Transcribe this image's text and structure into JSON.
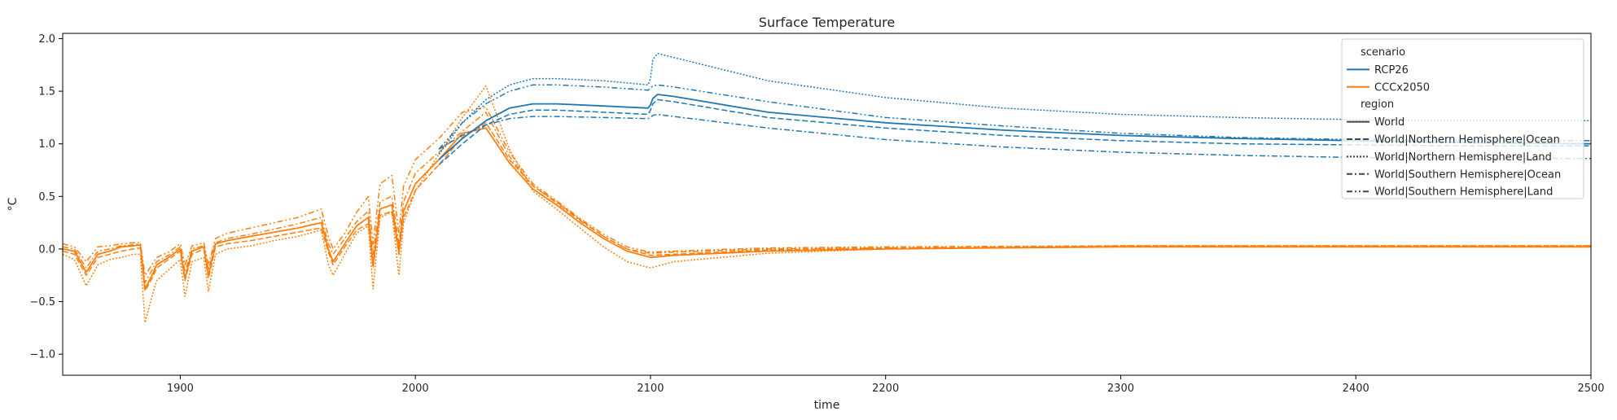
{
  "chart_data": {
    "type": "line",
    "title": "Surface Temperature",
    "xlabel": "time",
    "ylabel": "°C",
    "xlim": [
      1850,
      2500
    ],
    "ylim": [
      -1.2,
      2.05
    ],
    "xticks": [
      1900,
      2000,
      2100,
      2200,
      2300,
      2400,
      2500
    ],
    "yticks": [
      -1.0,
      -0.5,
      0.0,
      0.5,
      1.0,
      1.5,
      2.0
    ],
    "ytick_labels": [
      "−1.0",
      "−0.5",
      "0.0",
      "0.5",
      "1.0",
      "1.5",
      "2.0"
    ],
    "grid": false,
    "legend_placement": "top-right",
    "legend": {
      "scenario_header": "scenario",
      "region_header": "region",
      "scenarios": [
        {
          "name": "RCP26",
          "color": "#1f77b4"
        },
        {
          "name": "CCCx2050",
          "color": "#ff7f0e"
        }
      ],
      "regions": [
        {
          "name": "World",
          "dash": "solid"
        },
        {
          "name": "World|Northern Hemisphere|Ocean",
          "dash": "dashed"
        },
        {
          "name": "World|Northern Hemisphere|Land",
          "dash": "dotted"
        },
        {
          "name": "World|Southern Hemisphere|Ocean",
          "dash": "dashdot"
        },
        {
          "name": "World|Southern Hemisphere|Land",
          "dash": "dashdotdot"
        }
      ]
    },
    "series": [
      {
        "scenario": "CCCx2050",
        "region": "World",
        "color": "#ff7f0e",
        "dash": "solid",
        "x": [
          1850,
          1855,
          1860,
          1865,
          1870,
          1875,
          1880,
          1883,
          1885,
          1888,
          1890,
          1895,
          1900,
          1902,
          1905,
          1910,
          1912,
          1915,
          1920,
          1930,
          1940,
          1950,
          1960,
          1963,
          1965,
          1970,
          1975,
          1980,
          1982,
          1985,
          1990,
          1993,
          1995,
          2000,
          2010,
          2020,
          2030,
          2040,
          2050,
          2060,
          2070,
          2080,
          2090,
          2100,
          2110,
          2150,
          2200,
          2300,
          2400,
          2500
        ],
        "y": [
          0.0,
          -0.02,
          -0.22,
          -0.05,
          -0.02,
          0.02,
          0.03,
          0.04,
          -0.38,
          -0.25,
          -0.15,
          -0.08,
          0.0,
          -0.28,
          -0.02,
          0.02,
          -0.25,
          0.05,
          0.08,
          0.12,
          0.16,
          0.2,
          0.25,
          0.0,
          -0.12,
          0.05,
          0.22,
          0.3,
          -0.15,
          0.38,
          0.42,
          -0.02,
          0.36,
          0.62,
          0.85,
          1.1,
          1.15,
          0.82,
          0.57,
          0.42,
          0.25,
          0.1,
          -0.02,
          -0.08,
          -0.06,
          -0.02,
          0.0,
          0.02,
          0.02,
          0.02
        ]
      },
      {
        "scenario": "CCCx2050",
        "region": "World|Northern Hemisphere|Ocean",
        "color": "#ff7f0e",
        "dash": "dashed",
        "x": [
          1850,
          1855,
          1860,
          1865,
          1870,
          1875,
          1880,
          1883,
          1885,
          1888,
          1890,
          1895,
          1900,
          1902,
          1905,
          1910,
          1912,
          1915,
          1920,
          1930,
          1940,
          1950,
          1960,
          1963,
          1965,
          1970,
          1975,
          1980,
          1982,
          1985,
          1990,
          1993,
          1995,
          2000,
          2010,
          2020,
          2030,
          2040,
          2050,
          2060,
          2070,
          2080,
          2090,
          2100,
          2110,
          2150,
          2200,
          2300,
          2400,
          2500
        ],
        "y": [
          -0.02,
          -0.05,
          -0.25,
          -0.08,
          -0.05,
          -0.02,
          0.0,
          0.01,
          -0.4,
          -0.28,
          -0.18,
          -0.1,
          -0.02,
          -0.3,
          -0.05,
          0.0,
          -0.28,
          0.02,
          0.05,
          0.08,
          0.12,
          0.16,
          0.2,
          -0.03,
          -0.15,
          0.02,
          0.18,
          0.24,
          -0.18,
          0.32,
          0.36,
          -0.05,
          0.3,
          0.56,
          0.8,
          1.06,
          1.2,
          0.85,
          0.6,
          0.45,
          0.28,
          0.12,
          0.0,
          -0.06,
          -0.05,
          -0.01,
          0.01,
          0.03,
          0.03,
          0.03
        ]
      },
      {
        "scenario": "CCCx2050",
        "region": "World|Northern Hemisphere|Land",
        "color": "#ff7f0e",
        "dash": "dotted",
        "x": [
          1850,
          1855,
          1860,
          1865,
          1870,
          1875,
          1880,
          1883,
          1885,
          1888,
          1890,
          1895,
          1900,
          1902,
          1905,
          1910,
          1912,
          1915,
          1920,
          1930,
          1940,
          1950,
          1960,
          1963,
          1965,
          1970,
          1975,
          1980,
          1982,
          1985,
          1990,
          1993,
          1995,
          2000,
          2010,
          2020,
          2030,
          2040,
          2050,
          2060,
          2070,
          2080,
          2090,
          2100,
          2110,
          2150,
          2200,
          2300,
          2400,
          2500
        ],
        "y": [
          -0.05,
          -0.1,
          -0.35,
          -0.15,
          -0.1,
          -0.08,
          -0.05,
          -0.05,
          -0.7,
          -0.45,
          -0.3,
          -0.2,
          -0.1,
          -0.45,
          -0.12,
          -0.08,
          -0.4,
          -0.05,
          0.0,
          0.03,
          0.08,
          0.12,
          0.18,
          -0.15,
          -0.25,
          -0.05,
          0.15,
          0.22,
          -0.38,
          0.3,
          0.35,
          -0.25,
          0.25,
          0.55,
          0.9,
          1.25,
          1.55,
          0.95,
          0.55,
          0.38,
          0.2,
          0.02,
          -0.12,
          -0.18,
          -0.12,
          -0.04,
          0.0,
          0.03,
          0.03,
          0.03
        ]
      },
      {
        "scenario": "CCCx2050",
        "region": "World|Southern Hemisphere|Ocean",
        "color": "#ff7f0e",
        "dash": "dashdot",
        "x": [
          1850,
          1855,
          1860,
          1865,
          1870,
          1875,
          1880,
          1883,
          1885,
          1888,
          1890,
          1895,
          1900,
          1902,
          1905,
          1910,
          1912,
          1915,
          1920,
          1930,
          1940,
          1950,
          1960,
          1963,
          1965,
          1970,
          1975,
          1980,
          1982,
          1985,
          1990,
          1993,
          1995,
          2000,
          2010,
          2020,
          2030,
          2040,
          2050,
          2060,
          2070,
          2080,
          2090,
          2100,
          2110,
          2150,
          2200,
          2300,
          2400,
          2500
        ],
        "y": [
          0.02,
          0.0,
          -0.18,
          -0.02,
          0.0,
          0.03,
          0.04,
          0.05,
          -0.32,
          -0.2,
          -0.12,
          -0.06,
          0.02,
          -0.22,
          0.0,
          0.03,
          -0.2,
          0.06,
          0.1,
          0.14,
          0.19,
          0.24,
          0.3,
          0.05,
          -0.05,
          0.1,
          0.26,
          0.36,
          -0.05,
          0.45,
          0.5,
          0.05,
          0.45,
          0.72,
          0.92,
          1.12,
          1.3,
          0.88,
          0.6,
          0.44,
          0.27,
          0.12,
          0.0,
          -0.04,
          -0.03,
          0.0,
          0.01,
          0.02,
          0.02,
          0.02
        ]
      },
      {
        "scenario": "CCCx2050",
        "region": "World|Southern Hemisphere|Land",
        "color": "#ff7f0e",
        "dash": "dashdotdot",
        "x": [
          1850,
          1855,
          1860,
          1865,
          1870,
          1875,
          1880,
          1883,
          1885,
          1888,
          1890,
          1895,
          1900,
          1902,
          1905,
          1910,
          1912,
          1915,
          1920,
          1930,
          1940,
          1950,
          1960,
          1963,
          1965,
          1970,
          1975,
          1980,
          1982,
          1985,
          1990,
          1993,
          1995,
          2000,
          2010,
          2020,
          2030,
          2040,
          2050,
          2060,
          2070,
          2080,
          2090,
          2100,
          2110,
          2150,
          2200,
          2300,
          2400,
          2500
        ],
        "y": [
          0.05,
          0.02,
          -0.12,
          0.02,
          0.03,
          0.05,
          0.06,
          0.06,
          -0.25,
          -0.15,
          -0.08,
          -0.03,
          0.05,
          -0.15,
          0.03,
          0.06,
          -0.15,
          0.1,
          0.15,
          0.2,
          0.25,
          0.3,
          0.38,
          0.12,
          0.0,
          0.15,
          0.35,
          0.5,
          0.05,
          0.62,
          0.7,
          0.15,
          0.6,
          0.85,
          1.05,
          1.3,
          1.35,
          0.92,
          0.62,
          0.46,
          0.29,
          0.14,
          0.02,
          -0.03,
          -0.02,
          0.01,
          0.02,
          0.03,
          0.03,
          0.03
        ]
      },
      {
        "scenario": "RCP26",
        "region": "World",
        "color": "#1f77b4",
        "dash": "solid",
        "x": [
          2010,
          2020,
          2030,
          2040,
          2050,
          2060,
          2080,
          2099,
          2100,
          2101,
          2103,
          2110,
          2150,
          2200,
          2250,
          2300,
          2350,
          2400,
          2450,
          2500
        ],
        "y": [
          0.85,
          1.05,
          1.22,
          1.34,
          1.38,
          1.38,
          1.36,
          1.34,
          1.37,
          1.43,
          1.47,
          1.45,
          1.3,
          1.2,
          1.13,
          1.08,
          1.05,
          1.03,
          1.01,
          1.0
        ]
      },
      {
        "scenario": "RCP26",
        "region": "World|Northern Hemisphere|Ocean",
        "color": "#1f77b4",
        "dash": "dashed",
        "x": [
          2010,
          2020,
          2030,
          2040,
          2050,
          2060,
          2080,
          2099,
          2100,
          2101,
          2103,
          2110,
          2150,
          2200,
          2250,
          2300,
          2350,
          2400,
          2450,
          2500
        ],
        "y": [
          0.8,
          1.0,
          1.18,
          1.28,
          1.32,
          1.32,
          1.3,
          1.28,
          1.32,
          1.38,
          1.42,
          1.4,
          1.25,
          1.15,
          1.08,
          1.03,
          1.0,
          0.99,
          0.98,
          0.98
        ]
      },
      {
        "scenario": "RCP26",
        "region": "World|Northern Hemisphere|Land",
        "color": "#1f77b4",
        "dash": "dotted",
        "x": [
          2010,
          2020,
          2030,
          2040,
          2050,
          2060,
          2080,
          2099,
          2100,
          2101,
          2103,
          2110,
          2150,
          2200,
          2250,
          2300,
          2350,
          2400,
          2450,
          2500
        ],
        "y": [
          0.9,
          1.2,
          1.42,
          1.56,
          1.62,
          1.62,
          1.6,
          1.56,
          1.62,
          1.8,
          1.86,
          1.82,
          1.6,
          1.44,
          1.34,
          1.28,
          1.25,
          1.23,
          1.22,
          1.22
        ]
      },
      {
        "scenario": "RCP26",
        "region": "World|Southern Hemisphere|Ocean",
        "color": "#1f77b4",
        "dash": "dashdot",
        "x": [
          2010,
          2020,
          2030,
          2040,
          2050,
          2060,
          2080,
          2099,
          2100,
          2101,
          2103,
          2110,
          2150,
          2200,
          2250,
          2300,
          2350,
          2400,
          2450,
          2500
        ],
        "y": [
          0.95,
          1.08,
          1.18,
          1.24,
          1.26,
          1.26,
          1.25,
          1.24,
          1.25,
          1.27,
          1.28,
          1.26,
          1.15,
          1.04,
          0.97,
          0.92,
          0.89,
          0.87,
          0.86,
          0.86
        ]
      },
      {
        "scenario": "RCP26",
        "region": "World|Southern Hemisphere|Land",
        "color": "#1f77b4",
        "dash": "dashdotdot",
        "x": [
          2010,
          2020,
          2030,
          2040,
          2050,
          2060,
          2080,
          2099,
          2100,
          2101,
          2103,
          2110,
          2150,
          2200,
          2250,
          2300,
          2350,
          2400,
          2450,
          2500
        ],
        "y": [
          0.95,
          1.2,
          1.38,
          1.5,
          1.56,
          1.56,
          1.54,
          1.51,
          1.53,
          1.55,
          1.56,
          1.54,
          1.4,
          1.25,
          1.17,
          1.1,
          1.06,
          1.04,
          1.03,
          1.03
        ]
      }
    ]
  }
}
